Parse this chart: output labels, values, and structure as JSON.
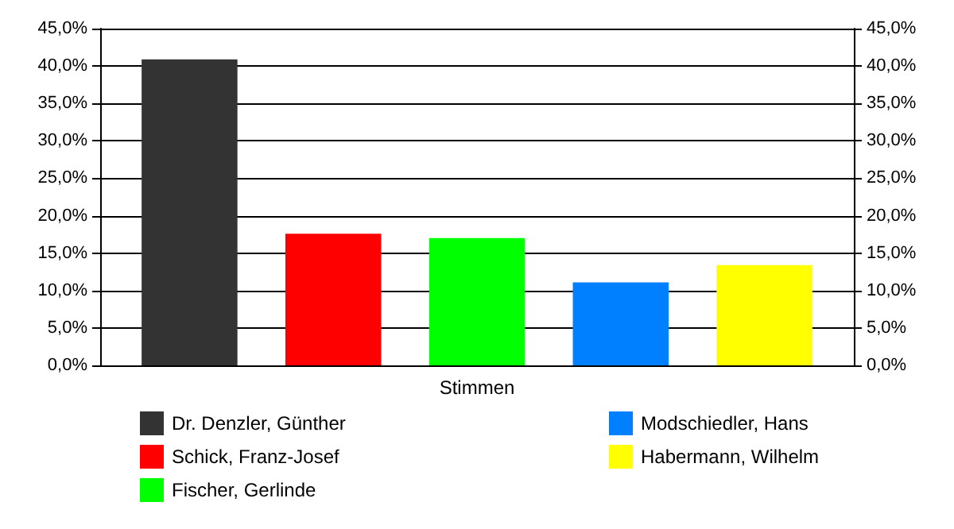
{
  "chart_data": {
    "type": "bar",
    "categories": [
      "Stimmen"
    ],
    "series": [
      {
        "name": "Dr. Denzler, Günther",
        "color": "#333333",
        "values": [
          40.9
        ]
      },
      {
        "name": "Schick, Franz-Josef",
        "color": "#ff0000",
        "values": [
          17.6
        ]
      },
      {
        "name": "Fischer, Gerlinde",
        "color": "#00ff00",
        "values": [
          17.0
        ]
      },
      {
        "name": "Modschiedler, Hans",
        "color": "#0080ff",
        "values": [
          11.1
        ]
      },
      {
        "name": "Habermann, Wilhelm",
        "color": "#ffff00",
        "values": [
          13.4
        ]
      }
    ],
    "ylim": [
      0,
      45
    ],
    "yticks": [
      {
        "value": 0,
        "label": "0,0%"
      },
      {
        "value": 5,
        "label": "5,0%"
      },
      {
        "value": 10,
        "label": "10,0%"
      },
      {
        "value": 15,
        "label": "15,0%"
      },
      {
        "value": 20,
        "label": "20,0%"
      },
      {
        "value": 25,
        "label": "25,0%"
      },
      {
        "value": 30,
        "label": "30,0%"
      },
      {
        "value": 35,
        "label": "35,0%"
      },
      {
        "value": 40,
        "label": "40,0%"
      },
      {
        "value": 45,
        "label": "45,0%"
      }
    ],
    "grid": "y",
    "legend": "bottom"
  }
}
